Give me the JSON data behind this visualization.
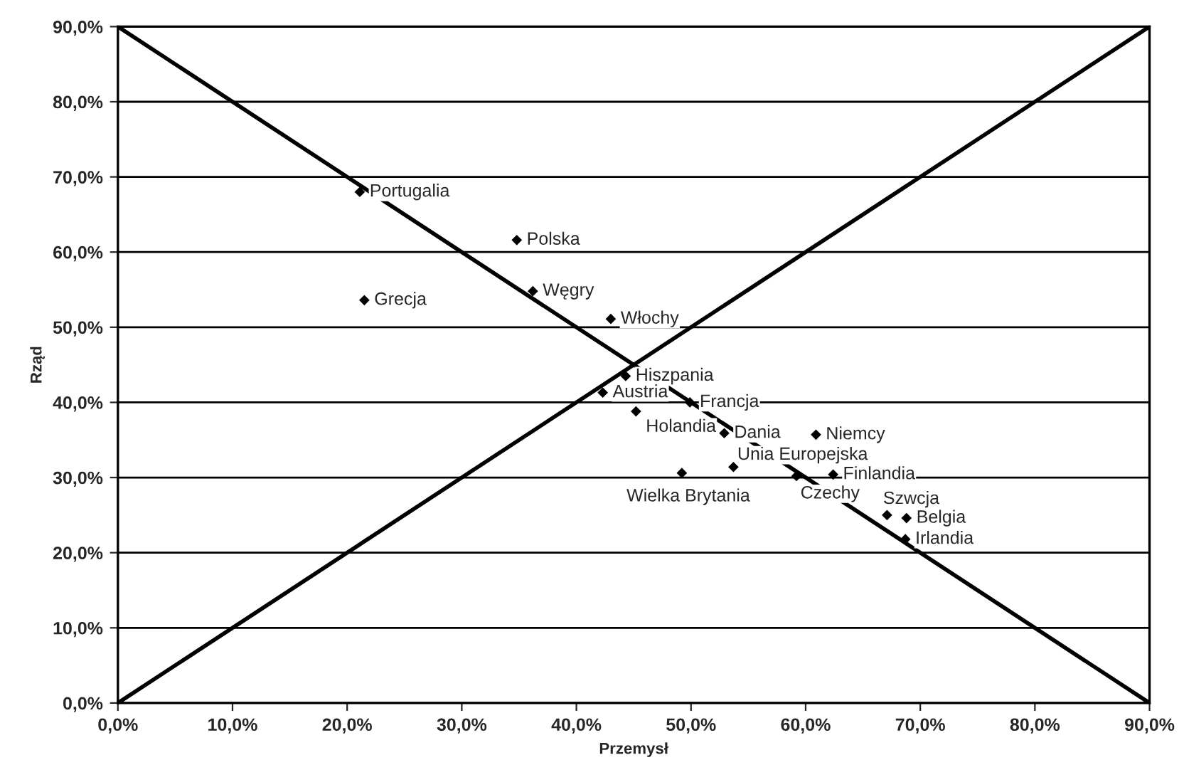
{
  "chart_data": {
    "type": "scatter",
    "xlabel": "Przemysł",
    "ylabel": "Rząd",
    "xlim": [
      0,
      90
    ],
    "ylim": [
      0,
      90
    ],
    "xticks": [
      {
        "value": 0,
        "label": "0,0%"
      },
      {
        "value": 10,
        "label": "10,0%"
      },
      {
        "value": 20,
        "label": "20,0%"
      },
      {
        "value": 30,
        "label": "30,0%"
      },
      {
        "value": 40,
        "label": "40,0%"
      },
      {
        "value": 50,
        "label": "50,0%"
      },
      {
        "value": 60,
        "label": "60,0%"
      },
      {
        "value": 70,
        "label": "70,0%"
      },
      {
        "value": 80,
        "label": "80,0%"
      },
      {
        "value": 90,
        "label": "90,0%"
      }
    ],
    "yticks": [
      {
        "value": 0,
        "label": "0,0%"
      },
      {
        "value": 10,
        "label": "10,0%"
      },
      {
        "value": 20,
        "label": "20,0%"
      },
      {
        "value": 30,
        "label": "30,0%"
      },
      {
        "value": 40,
        "label": "40,0%"
      },
      {
        "value": 50,
        "label": "50,0%"
      },
      {
        "value": 60,
        "label": "60,0%"
      },
      {
        "value": 70,
        "label": "70,0%"
      },
      {
        "value": 80,
        "label": "80,0%"
      },
      {
        "value": 90,
        "label": "90,0%"
      }
    ],
    "grid": "y",
    "legend": false,
    "marker": "diamond",
    "series": [
      {
        "color": "#000000",
        "x": [
          21.1,
          34.8,
          21.5,
          36.2,
          43.0,
          44.3,
          42.3,
          49.9,
          45.2,
          52.9,
          60.9,
          53.7,
          49.2,
          59.2,
          62.4,
          67.1,
          68.8,
          68.7
        ],
        "values": [
          68.0,
          61.6,
          53.6,
          54.8,
          51.1,
          43.5,
          41.3,
          40.0,
          38.8,
          35.9,
          35.7,
          31.4,
          30.6,
          30.2,
          30.4,
          25.0,
          24.6,
          21.8
        ]
      },
      {
        "type": "line",
        "marker": "none",
        "color": "#000000",
        "x": [
          0,
          90
        ],
        "values": [
          90,
          0
        ]
      },
      {
        "type": "line",
        "marker": "none",
        "color": "#000000",
        "x": [
          0,
          90
        ],
        "values": [
          0,
          90
        ]
      }
    ],
    "annotations": [
      {
        "text": "Portugalia",
        "x": 21.1,
        "y": 68.0
      },
      {
        "text": "Polska",
        "x": 34.8,
        "y": 61.6
      },
      {
        "text": "Grecja",
        "x": 21.5,
        "y": 53.6
      },
      {
        "text": "Węgry",
        "x": 36.2,
        "y": 54.8
      },
      {
        "text": "Włochy",
        "x": 43.0,
        "y": 51.1
      },
      {
        "text": "Hiszpania",
        "x": 44.3,
        "y": 43.5
      },
      {
        "text": "Austria",
        "x": 42.3,
        "y": 41.3
      },
      {
        "text": "Francja",
        "x": 49.9,
        "y": 40.0
      },
      {
        "text": "Holandia",
        "x": 45.2,
        "y": 38.8
      },
      {
        "text": "Dania",
        "x": 52.9,
        "y": 35.9
      },
      {
        "text": "Niemcy",
        "x": 60.9,
        "y": 35.7
      },
      {
        "text": "Unia Europejska",
        "x": 53.7,
        "y": 31.4
      },
      {
        "text": "Wielka Brytania",
        "x": 49.2,
        "y": 30.6
      },
      {
        "text": "Czechy",
        "x": 59.2,
        "y": 30.2
      },
      {
        "text": "Finlandia",
        "x": 62.4,
        "y": 30.4
      },
      {
        "text": "Szwcja",
        "x": 67.1,
        "y": 25.0
      },
      {
        "text": "Belgia",
        "x": 68.8,
        "y": 24.6
      },
      {
        "text": "Irlandia",
        "x": 68.7,
        "y": 21.8
      }
    ]
  }
}
